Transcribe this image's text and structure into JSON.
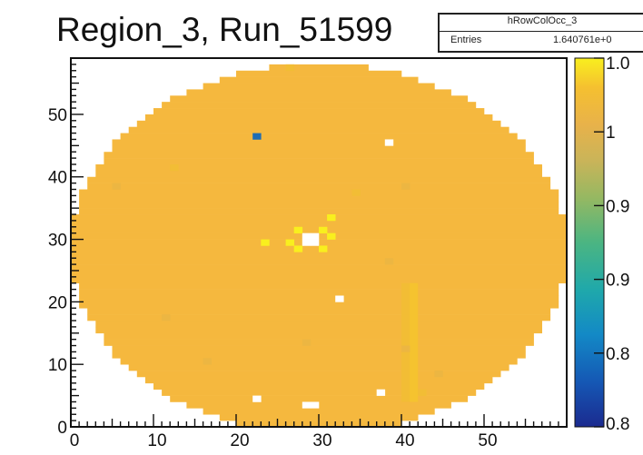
{
  "title": "Region_3, Run_51599",
  "stats_box": {
    "name": "hRowColOcc_3",
    "entries_label": "Entries",
    "entries_value": "1.640761e+0"
  },
  "chart_data": {
    "type": "heatmap",
    "x_range": [
      0,
      60
    ],
    "y_range": [
      0,
      59
    ],
    "x_ticks": [
      "0",
      "10",
      "20",
      "30",
      "40",
      "50"
    ],
    "y_ticks": [
      "0",
      "10",
      "20",
      "30",
      "40",
      "50"
    ],
    "xlabel": "",
    "ylabel": "",
    "z_range": [
      0.8,
      1.0
    ],
    "colorbar_labels": [
      "0.8",
      "0.8",
      "0.9",
      "0.9",
      "1",
      "1.0"
    ],
    "occupied_region": {
      "shape": "ellipse",
      "center": [
        29.5,
        28.5
      ],
      "radius_x": 29.5,
      "radius_y": 29.5
    },
    "typical_value": 1.0,
    "cell_values": [
      {
        "x": 22,
        "y": 46,
        "value": 0.8,
        "color": "#1e6cb3"
      },
      {
        "x": 28,
        "y": 30,
        "value": 1.2
      },
      {
        "x": 29,
        "y": 30,
        "value": 1.2
      },
      {
        "x": 28,
        "y": 29,
        "value": 1.2
      },
      {
        "x": 29,
        "y": 29,
        "value": 1.2
      },
      {
        "x": 27,
        "y": 31,
        "value": 1.03
      },
      {
        "x": 30,
        "y": 31,
        "value": 1.03
      },
      {
        "x": 27,
        "y": 28,
        "value": 1.03
      },
      {
        "x": 30,
        "y": 28,
        "value": 1.02
      },
      {
        "x": 31,
        "y": 30,
        "value": 1.03
      },
      {
        "x": 26,
        "y": 29,
        "value": 1.03
      },
      {
        "x": 23,
        "y": 29,
        "value": 1.05
      },
      {
        "x": 31,
        "y": 33,
        "value": 1.03
      },
      {
        "x": 38,
        "y": 45,
        "value": 1.2
      },
      {
        "x": 57,
        "y": 42,
        "value": 1.2
      },
      {
        "x": 32,
        "y": 20,
        "value": 1.2
      },
      {
        "x": 22,
        "y": 4,
        "value": 1.2
      },
      {
        "x": 28,
        "y": 3,
        "value": 1.2
      },
      {
        "x": 29,
        "y": 3,
        "value": 1.2
      },
      {
        "x": 37,
        "y": 5,
        "value": 1.2
      },
      {
        "x": 26,
        "y": 57,
        "value": 0.98
      },
      {
        "x": 40,
        "y": 38,
        "value": 0.97
      },
      {
        "x": 38,
        "y": 26,
        "value": 0.97
      },
      {
        "x": 5,
        "y": 38,
        "value": 0.97
      },
      {
        "x": 11,
        "y": 17,
        "value": 0.97
      },
      {
        "x": 28,
        "y": 13,
        "value": 0.97
      },
      {
        "x": 16,
        "y": 10,
        "value": 0.97
      },
      {
        "x": 40,
        "y": 12,
        "value": 0.97
      },
      {
        "x": 44,
        "y": 8,
        "value": 0.97
      },
      {
        "x": 42,
        "y": 5,
        "value": 0.98
      },
      {
        "x": 34,
        "y": 37,
        "value": 0.98
      },
      {
        "x": 12,
        "y": 41,
        "value": 0.98
      }
    ],
    "dim_columns": [
      {
        "x": 40,
        "y_from": 4,
        "y_to": 22,
        "value": 0.98
      },
      {
        "x": 41,
        "y_from": 4,
        "y_to": 22,
        "value": 0.985
      }
    ],
    "colors": {
      "typical": "#f5b83e",
      "hot": "#ffffff",
      "low": "#1e6cb3",
      "frame": "#111111"
    }
  }
}
